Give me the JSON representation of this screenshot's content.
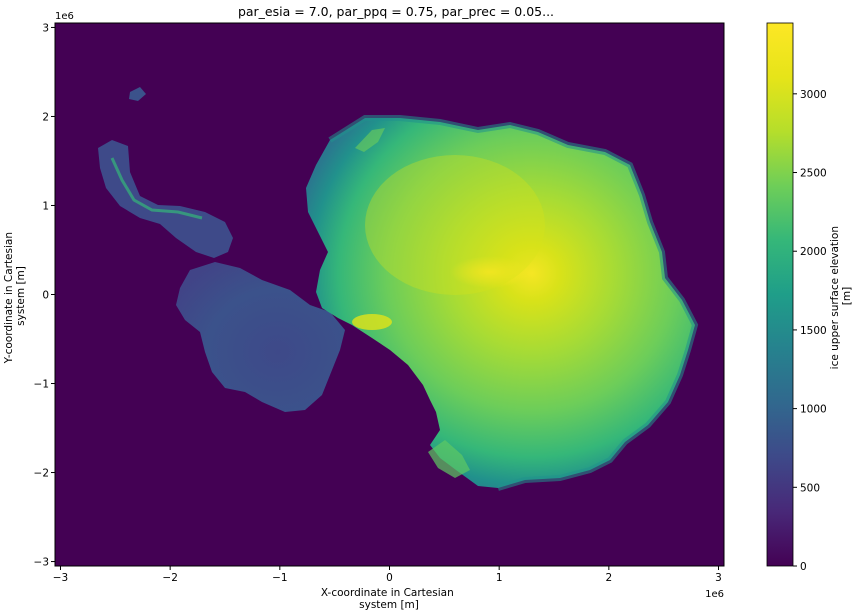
{
  "chart_data": {
    "type": "heatmap",
    "title": "par_esia = 7.0, par_ppq = 0.75, par_prec = 0.05...",
    "xlabel_lines": [
      "X-coordinate in Cartesian",
      "system [m]"
    ],
    "ylabel_lines": [
      "Y-coordinate in Cartesian",
      "system [m]"
    ],
    "x_offset_label": "1e6",
    "y_offset_label": "1e6",
    "xlim": [
      -3.05,
      3.05
    ],
    "ylim": [
      -3.05,
      3.05
    ],
    "xticks": [
      -3,
      -2,
      -1,
      0,
      1,
      2,
      3
    ],
    "yticks": [
      -3,
      -2,
      -1,
      0,
      1,
      2,
      3
    ],
    "xtick_labels": [
      "−3",
      "−2",
      "−1",
      "0",
      "1",
      "2",
      "3"
    ],
    "ytick_labels": [
      "−3",
      "−2",
      "−1",
      "0",
      "1",
      "2",
      "3"
    ],
    "grid": false,
    "colormap": "viridis",
    "background_value": 0,
    "colorbar": {
      "label_lines": [
        "ice upper surface elevation",
        "[m]"
      ],
      "range": [
        0,
        3450
      ],
      "ticks": [
        0,
        500,
        1000,
        1500,
        2000,
        2500,
        3000
      ],
      "tick_labels": [
        "0",
        "500",
        "1000",
        "1500",
        "2000",
        "2500",
        "3000"
      ]
    },
    "colors": {
      "viridis_0": "#440154",
      "viridis_25": "#3b528b",
      "viridis_50": "#21918c",
      "viridis_75": "#5ec962",
      "viridis_100": "#fde725"
    }
  }
}
